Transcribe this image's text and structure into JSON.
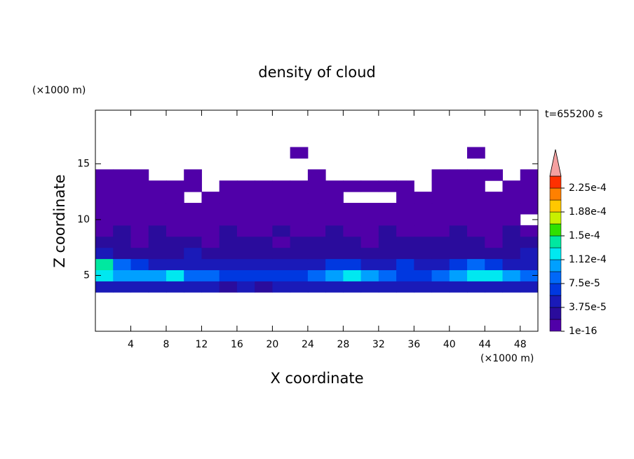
{
  "chart_data": {
    "type": "contour",
    "title": "density of cloud",
    "x_label": "X coordinate",
    "y_label": "Z coordinate",
    "x_unit": "(×1000 m)",
    "y_unit": "(×1000 m)",
    "time_label": "t=655200 s",
    "xlim": [
      0,
      50
    ],
    "ylim": [
      0,
      19.8
    ],
    "xticks": [
      4,
      8,
      12,
      16,
      20,
      24,
      28,
      32,
      36,
      40,
      44,
      48
    ],
    "yticks": [
      5,
      10,
      15
    ],
    "x": [
      1,
      3,
      5,
      7,
      9,
      11,
      13,
      15,
      17,
      19,
      21,
      23,
      25,
      27,
      29,
      31,
      33,
      35,
      37,
      39,
      41,
      43,
      45,
      47,
      49
    ],
    "y": [
      4,
      5,
      6,
      7,
      8,
      9,
      10,
      11,
      12,
      13,
      14,
      16
    ],
    "z": [
      [
        3.8e-05,
        4.2e-05,
        4.5e-05,
        4.4e-05,
        4e-05,
        3.9e-05,
        3.8e-05,
        3.6e-05,
        3.8e-05,
        3.7e-05,
        3.9e-05,
        4e-05,
        4.3e-05,
        4.6e-05,
        4.4e-05,
        4e-05,
        3.8e-05,
        4e-05,
        4.2e-05,
        4.5e-05,
        4.6e-05,
        4.3e-05,
        4.1e-05,
        4e-05,
        3.9e-05
      ],
      [
        0.00013,
        0.00011,
        0.0001,
        0.00011,
        0.000115,
        9e-05,
        8e-05,
        7e-05,
        6.5e-05,
        7e-05,
        6e-05,
        6.5e-05,
        9e-05,
        0.00011,
        0.00012,
        0.000105,
        9e-05,
        6e-05,
        7e-05,
        9e-05,
        0.00011,
        0.00012,
        0.000115,
        0.0001,
        9e-05
      ],
      [
        0.00014,
        8e-05,
        6e-05,
        5e-05,
        5.5e-05,
        4.5e-05,
        4e-05,
        5e-05,
        4.5e-05,
        4e-05,
        4e-05,
        4.2e-05,
        5e-05,
        6e-05,
        7e-05,
        5e-05,
        5e-05,
        6e-05,
        5.5e-05,
        5e-05,
        6e-05,
        8e-05,
        6e-05,
        5e-05,
        5.5e-05
      ],
      [
        4e-05,
        3.5e-05,
        3e-05,
        3e-05,
        3.2e-05,
        3.8e-05,
        2.8e-05,
        3e-05,
        2.6e-05,
        2.8e-05,
        3e-05,
        2.8e-05,
        3e-05,
        3.2e-05,
        3e-05,
        2.8e-05,
        3.5e-05,
        3e-05,
        2.6e-05,
        3e-05,
        3.2e-05,
        3e-05,
        2.8e-05,
        3e-05,
        4e-05
      ],
      [
        2.4e-05,
        2.2e-05,
        1.8e-05,
        2.4e-05,
        2.2e-05,
        2e-05,
        1.6e-05,
        2.2e-05,
        2.4e-05,
        2e-05,
        1.8e-05,
        2.2e-05,
        2e-05,
        2.4e-05,
        2.2e-05,
        1.8e-05,
        2.4e-05,
        2.2e-05,
        2e-05,
        2.2e-05,
        2.4e-05,
        2e-05,
        1.8e-05,
        2.2e-05,
        2.4e-05
      ],
      [
        1.6e-05,
        2e-05,
        1.4e-05,
        1.9e-05,
        1.6e-05,
        1.2e-05,
        1.5e-05,
        2e-05,
        1.6e-05,
        1.4e-05,
        1.9e-05,
        1.6e-05,
        1.5e-05,
        2e-05,
        1.4e-05,
        1.6e-05,
        1.9e-05,
        1.5e-05,
        1.4e-05,
        1.6e-05,
        2e-05,
        1.6e-05,
        1.4e-05,
        1.9e-05,
        1.5e-05
      ],
      [
        1.2e-05,
        1.4e-05,
        1.2e-05,
        1e-05,
        1.2e-05,
        1.1e-05,
        1e-05,
        1.2e-05,
        1.3e-05,
        1e-05,
        1.1e-05,
        1.2e-05,
        1e-05,
        1.3e-05,
        1.2e-05,
        1e-05,
        1.1e-05,
        1.2e-05,
        1e-05,
        1.2e-05,
        1.3e-05,
        1.1e-05,
        1e-05,
        1.2e-05,
        null
      ],
      [
        8e-06,
        8e-06,
        7e-06,
        8e-06,
        9e-06,
        8e-06,
        7e-06,
        8e-06,
        8e-06,
        7e-06,
        8e-06,
        9e-06,
        8e-06,
        8e-06,
        7e-06,
        8e-06,
        8e-06,
        7e-06,
        8e-06,
        9e-06,
        8e-06,
        8e-06,
        7e-06,
        8e-06,
        8e-06
      ],
      [
        5e-06,
        5e-06,
        5e-06,
        5e-06,
        5e-06,
        null,
        5e-06,
        5e-06,
        5e-06,
        5e-06,
        5e-06,
        5e-06,
        5e-06,
        5e-06,
        null,
        null,
        null,
        5e-06,
        5e-06,
        5e-06,
        5e-06,
        5e-06,
        5e-06,
        5e-06,
        5e-06
      ],
      [
        4e-06,
        4e-06,
        4e-06,
        4e-06,
        4e-06,
        4e-06,
        null,
        4e-06,
        4e-06,
        4e-06,
        4e-06,
        4e-06,
        4e-06,
        4e-06,
        4e-06,
        4e-06,
        4e-06,
        4e-06,
        null,
        4e-06,
        4e-06,
        4e-06,
        null,
        4e-06,
        4e-06
      ],
      [
        3e-06,
        3e-06,
        3e-06,
        null,
        null,
        3e-06,
        null,
        null,
        null,
        null,
        null,
        null,
        3e-06,
        null,
        null,
        null,
        null,
        null,
        null,
        3e-06,
        3e-06,
        3e-06,
        3e-06,
        null,
        3e-06
      ],
      [
        null,
        null,
        null,
        null,
        null,
        null,
        null,
        null,
        null,
        null,
        null,
        2e-06,
        null,
        null,
        null,
        null,
        null,
        null,
        null,
        null,
        null,
        2e-06,
        null,
        null,
        null
      ]
    ],
    "levels": [
      1e-16,
      1.875e-05,
      3.75e-05,
      5.625e-05,
      7.5e-05,
      9.375e-05,
      0.0001125,
      0.00013125,
      0.00015,
      0.00016875,
      0.0001875,
      0.00020625,
      0.000225
    ],
    "colorbar_ticks": [
      1e-16,
      {
        "value": 3.75e-05,
        "label": "3.75e-5"
      },
      {
        "value": 7.5e-05,
        "label": "7.5e-5"
      },
      {
        "value": 0.0001125,
        "label": "1.12e-4"
      },
      {
        "value": 0.00015,
        "label": "1.5e-4"
      },
      {
        "value": 0.0001875,
        "label": "1.88e-4"
      },
      {
        "value": 0.000225,
        "label": "2.25e-4"
      }
    ],
    "colors": [
      "#5000a8",
      "#2a0c9c",
      "#1a1ab8",
      "#0038e0",
      "#0068f8",
      "#00a0ff",
      "#00e8f0",
      "#00e8a0",
      "#30e000",
      "#c8f000",
      "#ffc800",
      "#ff8000",
      "#ff3000"
    ],
    "extend_color": "#f4a0a0"
  }
}
